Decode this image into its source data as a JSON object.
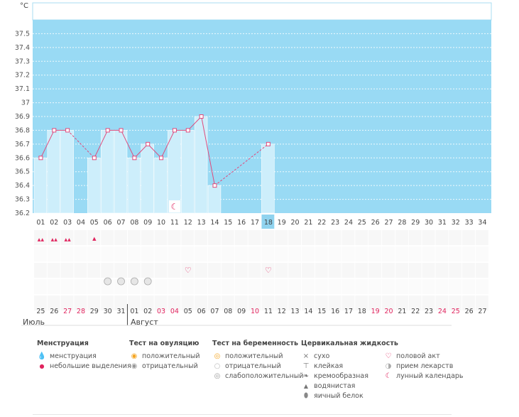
{
  "chart_data": {
    "type": "bar",
    "ylabel": "°C",
    "ylim": [
      36.2,
      37.6
    ],
    "y_ticks": [
      "36.2",
      "36.3",
      "36.4",
      "36.5",
      "36.6",
      "36.7",
      "36.8",
      "36.9",
      "37",
      "37.1",
      "37.2",
      "37.3",
      "37.4",
      "37.5"
    ],
    "cycle_days": [
      "01",
      "02",
      "03",
      "04",
      "05",
      "06",
      "07",
      "08",
      "09",
      "10",
      "11",
      "12",
      "13",
      "14",
      "15",
      "16",
      "17",
      "18",
      "19",
      "20",
      "21",
      "22",
      "23",
      "24",
      "25",
      "26",
      "27",
      "28",
      "29",
      "30",
      "31",
      "32",
      "33",
      "34"
    ],
    "current_day": "18",
    "temperatures": [
      36.6,
      36.8,
      36.8,
      null,
      36.6,
      36.8,
      36.8,
      36.6,
      36.7,
      36.6,
      36.8,
      36.8,
      36.9,
      36.4,
      null,
      null,
      null,
      36.7,
      null,
      null,
      null,
      null,
      null,
      null,
      null,
      null,
      null,
      null,
      null,
      null,
      null,
      null,
      null,
      null
    ],
    "dates": [
      "25",
      "26",
      "27",
      "28",
      "29",
      "30",
      "31",
      "01",
      "02",
      "03",
      "04",
      "05",
      "06",
      "07",
      "08",
      "09",
      "10",
      "11",
      "12",
      "13",
      "14",
      "15",
      "16",
      "17",
      "18",
      "19",
      "20",
      "21",
      "22",
      "23",
      "24",
      "25",
      "26",
      "27"
    ],
    "red_dates_idx": [
      2,
      3,
      9,
      10,
      16,
      25,
      26,
      30,
      31
    ],
    "months": [
      {
        "label": "Июль",
        "start_idx": 0
      },
      {
        "label": "Август",
        "start_idx": 7
      }
    ],
    "markers": {
      "menstruation": [
        0,
        1,
        2
      ],
      "light_spotting": [
        4
      ],
      "intercourse": [
        11,
        17
      ],
      "medication": [
        5,
        6,
        7,
        8
      ],
      "lunar": [
        10
      ]
    }
  },
  "legend": {
    "menstruation": {
      "title": "Менструация",
      "items": [
        "менструация",
        "небольшие выделения"
      ]
    },
    "ovulation_test": {
      "title": "Тест на овуляцию",
      "items": [
        "положительный",
        "отрицательный"
      ]
    },
    "pregnancy_test": {
      "title": "Тест на беременность",
      "items": [
        "положительный",
        "отрицательный",
        "слабоположительный"
      ]
    },
    "cervical": {
      "title": "Цервикальная жидкость",
      "items": [
        "сухо",
        "клейкая",
        "кремообразная",
        "водянистая",
        "яичный белок"
      ]
    },
    "other": {
      "items": [
        "половой акт",
        "прием лекарств",
        "лунный календарь"
      ]
    }
  },
  "colors": {
    "plot_bg": "#99daf4",
    "bar": "#cdeefb",
    "bar_edge": "#ffffff",
    "line": "#e04a7c",
    "red": "#e0245e",
    "accent": "#e0245e"
  }
}
